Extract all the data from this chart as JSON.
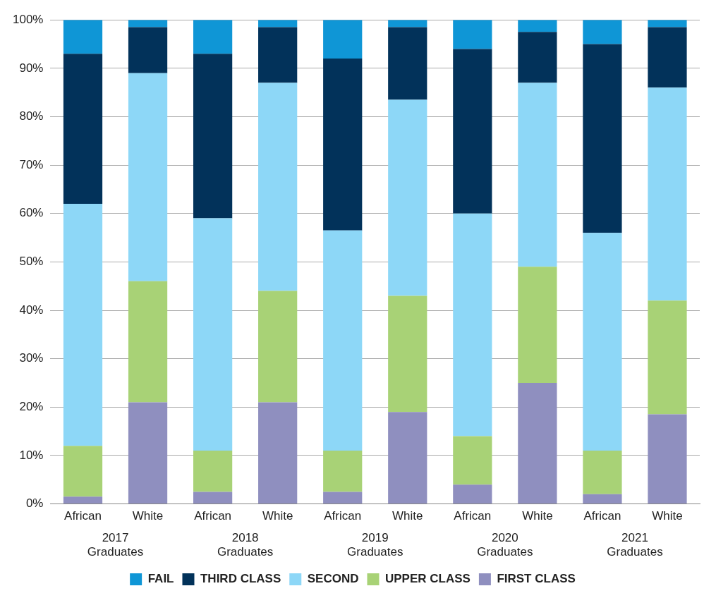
{
  "chart_data": {
    "type": "bar",
    "stacked": true,
    "categories": [
      "African",
      "White",
      "African",
      "White",
      "African",
      "White",
      "African",
      "White",
      "African",
      "White"
    ],
    "series": [
      {
        "name": "FIRST CLASS",
        "color": "#8f8fbf",
        "values": [
          1.5,
          21,
          2.5,
          21,
          2.5,
          19,
          4,
          25,
          2,
          18.5
        ]
      },
      {
        "name": "UPPER CLASS",
        "color": "#a8d276",
        "values": [
          10.5,
          25,
          8.5,
          23,
          8.5,
          24,
          10,
          24,
          9,
          23.5
        ]
      },
      {
        "name": "SECOND",
        "color": "#8dd7f7",
        "values": [
          50,
          43,
          48,
          43,
          45.5,
          40.5,
          46,
          38,
          45,
          44
        ]
      },
      {
        "name": "THIRD CLASS",
        "color": "#02325a",
        "values": [
          31,
          9.5,
          34,
          11.5,
          35.5,
          15,
          34,
          10.5,
          39,
          12.5
        ]
      },
      {
        "name": "FAIL",
        "color": "#0f96d6",
        "values": [
          7,
          1.5,
          7,
          1.5,
          8,
          1.5,
          6,
          2.5,
          5,
          1.5
        ]
      }
    ],
    "ylim": [
      0,
      100
    ],
    "yticks": [
      {
        "value": 0,
        "label": "0%"
      },
      {
        "value": 10,
        "label": "10%"
      },
      {
        "value": 20,
        "label": "20%"
      },
      {
        "value": 30,
        "label": "30%"
      },
      {
        "value": 40,
        "label": "40%"
      },
      {
        "value": 50,
        "label": "50%"
      },
      {
        "value": 60,
        "label": "60%"
      },
      {
        "value": 70,
        "label": "70%"
      },
      {
        "value": 80,
        "label": "80%"
      },
      {
        "value": 90,
        "label": "90%"
      },
      {
        "value": 100,
        "label": "100%"
      }
    ],
    "grid": "y",
    "legend": "bottom",
    "annotations": [
      "2017 Graduates",
      "2018 Graduates",
      "2019 Graduates",
      "2020 Graduates",
      "2021 Graduates"
    ]
  }
}
